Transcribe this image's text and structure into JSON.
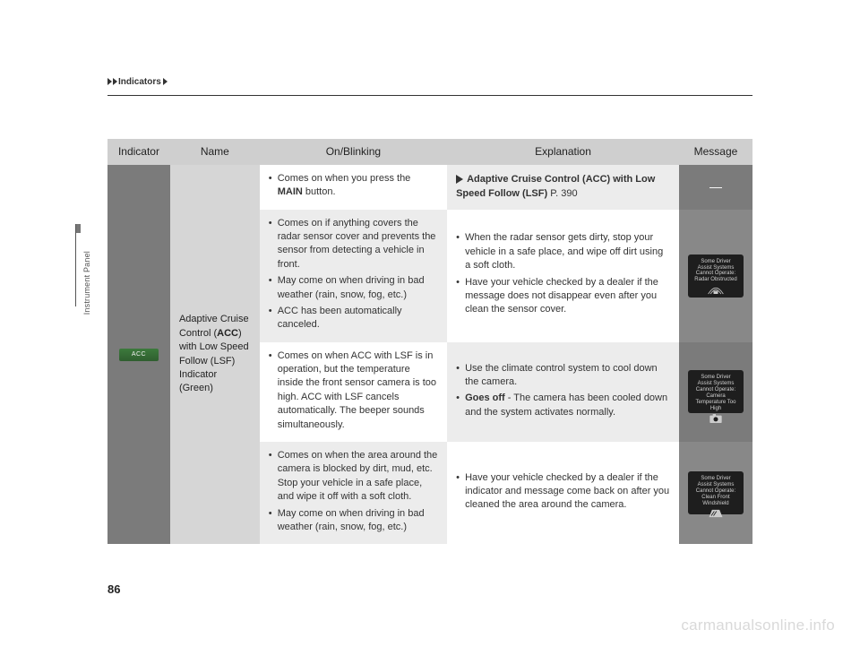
{
  "breadcrumb": {
    "section": "Indicators"
  },
  "sidebar": {
    "label": "Instrument Panel"
  },
  "pageNumber": "86",
  "watermark": "carmanualsonline.info",
  "table": {
    "headers": {
      "indicator": "Indicator",
      "name": "Name",
      "onblink": "On/Blinking",
      "explanation": "Explanation",
      "message": "Message"
    },
    "indicator": {
      "iconText": "ACC"
    },
    "name": {
      "line1": "Adaptive Cruise Control (",
      "bold1": "ACC",
      "line2": ") with Low Speed Follow (LSF) Indicator (Green)"
    },
    "rows": [
      {
        "onblink": [
          {
            "pre": "Comes on when you press the ",
            "bold": "MAIN",
            "post": " button."
          }
        ],
        "explanation_ref": {
          "title": "Adaptive Cruise Control (ACC) with Low Speed Follow (LSF)",
          "page": "P. 390"
        },
        "message_dash": "—",
        "bg_on": "cell-white",
        "bg_ex": "cell-lgrey",
        "bg_msg": "cell-dark-1"
      },
      {
        "onblink": [
          {
            "text": "Comes on if anything covers the radar sensor cover and prevents the sensor from detecting a vehicle in front."
          },
          {
            "text": "May come on when driving in bad weather (rain, snow, fog, etc.)"
          },
          {
            "text": "ACC has been automatically canceled."
          }
        ],
        "explanation": [
          {
            "text": "When the radar sensor gets dirty, stop your vehicle in a safe place, and wipe off dirt using a soft cloth."
          },
          {
            "text": "Have your vehicle checked by a dealer if the message does not disappear even after you clean the sensor cover."
          }
        ],
        "message_box": {
          "l1": "Some Driver",
          "l2": "Assist Systems",
          "l3": "Cannot Operate:",
          "l4": "Radar Obstructed",
          "icon": "radar"
        },
        "bg_on": "cell-lgrey",
        "bg_ex": "cell-white",
        "bg_msg": "cell-dark-2"
      },
      {
        "onblink": [
          {
            "text": "Comes on when ACC with LSF is in operation, but the temperature inside the front sensor camera is too high. ACC with LSF cancels automatically. The beeper sounds simultaneously."
          }
        ],
        "explanation": [
          {
            "text": "Use the climate control system to cool down the camera."
          },
          {
            "bold": "Goes off",
            "post": " - The camera has been cooled down and the system activates normally."
          }
        ],
        "message_box": {
          "l1": "Some Driver",
          "l2": "Assist Systems",
          "l3": "Cannot Operate:",
          "l4": "Camera Temperature Too High",
          "icon": "camera"
        },
        "bg_on": "cell-white",
        "bg_ex": "cell-lgrey",
        "bg_msg": "cell-dark-1"
      },
      {
        "onblink": [
          {
            "text": "Comes on when the area around the camera is blocked by dirt, mud, etc. Stop your vehicle in a safe place, and wipe it off with a soft cloth."
          },
          {
            "text": "May come on when driving in bad weather (rain, snow, fog, etc.)"
          }
        ],
        "explanation": [
          {
            "text": "Have your vehicle checked by a dealer if the indicator and message come back on after you cleaned the area around the camera."
          }
        ],
        "message_box": {
          "l1": "Some Driver",
          "l2": "Assist Systems",
          "l3": "Cannot Operate:",
          "l4": "Clean Front Windshield",
          "icon": "windshield"
        },
        "bg_on": "cell-lgrey",
        "bg_ex": "cell-white",
        "bg_msg": "cell-dark-2"
      }
    ]
  }
}
